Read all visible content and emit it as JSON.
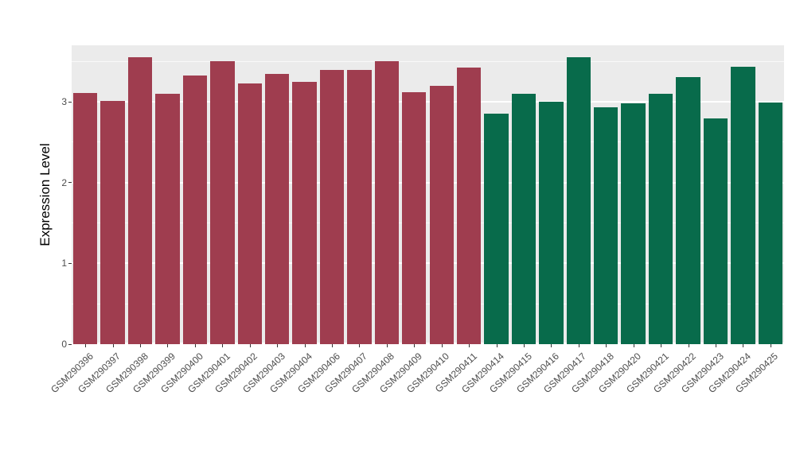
{
  "figure": {
    "background": "#FFFFFF",
    "panel_background": "#EBEBEB",
    "grid_color": "#FFFFFF",
    "axis_text_color": "#4D4D4D",
    "axis_title_color": "#000000"
  },
  "chart_data": {
    "type": "bar",
    "title": "",
    "xlabel": "",
    "ylabel": "Expression Level",
    "ylim": [
      0,
      3.7
    ],
    "yticks": [
      0,
      1,
      2,
      3
    ],
    "grid": true,
    "legend_position": "none",
    "group_colors": {
      "red": "#9F3D4F",
      "green": "#086B4B"
    },
    "categories": [
      "GSM290396",
      "GSM290397",
      "GSM290398",
      "GSM290399",
      "GSM290400",
      "GSM290401",
      "GSM290402",
      "GSM290403",
      "GSM290404",
      "GSM290406",
      "GSM290407",
      "GSM290408",
      "GSM290409",
      "GSM290410",
      "GSM290411",
      "GSM290414",
      "GSM290415",
      "GSM290416",
      "GSM290417",
      "GSM290418",
      "GSM290420",
      "GSM290421",
      "GSM290422",
      "GSM290423",
      "GSM290424",
      "GSM290425"
    ],
    "values": [
      3.11,
      3.01,
      3.55,
      3.1,
      3.33,
      3.5,
      3.23,
      3.35,
      3.25,
      3.4,
      3.4,
      3.5,
      3.12,
      3.2,
      3.42,
      2.85,
      3.1,
      3.0,
      3.55,
      2.93,
      2.98,
      3.1,
      3.31,
      2.79,
      3.43,
      2.99
    ],
    "groups": [
      "red",
      "red",
      "red",
      "red",
      "red",
      "red",
      "red",
      "red",
      "red",
      "red",
      "red",
      "red",
      "red",
      "red",
      "red",
      "green",
      "green",
      "green",
      "green",
      "green",
      "green",
      "green",
      "green",
      "green",
      "green",
      "green"
    ]
  }
}
